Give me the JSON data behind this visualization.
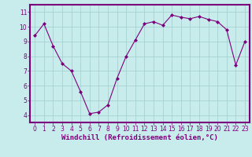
{
  "x": [
    0,
    1,
    2,
    3,
    4,
    5,
    6,
    7,
    8,
    9,
    10,
    11,
    12,
    13,
    14,
    15,
    16,
    17,
    18,
    19,
    20,
    21,
    22,
    23
  ],
  "y": [
    9.4,
    10.2,
    8.7,
    7.5,
    7.0,
    5.6,
    4.1,
    4.2,
    4.7,
    6.5,
    8.0,
    9.1,
    10.2,
    10.35,
    10.1,
    10.8,
    10.65,
    10.55,
    10.7,
    10.5,
    10.35,
    9.8,
    7.4,
    9.0
  ],
  "line_color": "#7b007b",
  "marker": "D",
  "marker_size": 2.0,
  "bg_color": "#c8ecec",
  "grid_color": "#a0cccc",
  "border_color": "#7b007b",
  "xlabel": "Windchill (Refroidissement éolien,°C)",
  "xlabel_color": "#7b007b",
  "tick_color": "#7b007b",
  "ylim": [
    3.5,
    11.5
  ],
  "xlim": [
    -0.5,
    23.5
  ],
  "yticks": [
    4,
    5,
    6,
    7,
    8,
    9,
    10,
    11
  ],
  "xticks": [
    0,
    1,
    2,
    3,
    4,
    5,
    6,
    7,
    8,
    9,
    10,
    11,
    12,
    13,
    14,
    15,
    16,
    17,
    18,
    19,
    20,
    21,
    22,
    23
  ],
  "tick_fontsize": 5.5,
  "xlabel_fontsize": 6.5
}
